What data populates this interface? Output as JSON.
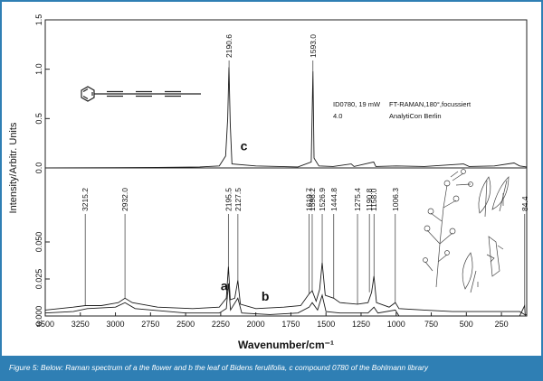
{
  "theme": {
    "frame_color": "#2f7fb4",
    "caption_bg": "#2f7fb4",
    "trace_color": "#1a1a1a",
    "caption_text_color": "#ffffff"
  },
  "chart_data": [
    {
      "type": "line",
      "panel": "top",
      "xlim": [
        3500,
        70
      ],
      "ylim": [
        0,
        1.5
      ],
      "yticks": [
        "0.0",
        "0.5",
        "1.0",
        "1.5"
      ],
      "ytick_values": [
        0,
        0.5,
        1.0,
        1.5
      ],
      "peak_labels": [
        {
          "x": 2190.6,
          "label": "2190.6"
        },
        {
          "x": 1593.0,
          "label": "1593.0"
        }
      ],
      "series": [
        {
          "name": "c",
          "label": "c",
          "label_x": 2110,
          "label_y": 0.18,
          "points": [
            [
              3500,
              0.0
            ],
            [
              2700,
              0.005
            ],
            [
              2400,
              0.01
            ],
            [
              2260,
              0.02
            ],
            [
              2215,
              0.12
            ],
            [
              2200,
              0.5
            ],
            [
              2191,
              1.02
            ],
            [
              2182,
              0.45
            ],
            [
              2170,
              0.04
            ],
            [
              2000,
              0.02
            ],
            [
              1700,
              0.01
            ],
            [
              1605,
              0.06
            ],
            [
              1593,
              0.98
            ],
            [
              1585,
              0.1
            ],
            [
              1550,
              0.02
            ],
            [
              1450,
              0.015
            ],
            [
              1320,
              0.04
            ],
            [
              1300,
              0.015
            ],
            [
              1160,
              0.06
            ],
            [
              1145,
              0.015
            ],
            [
              1000,
              0.02
            ],
            [
              800,
              0.015
            ],
            [
              520,
              0.04
            ],
            [
              480,
              0.015
            ],
            [
              300,
              0.02
            ],
            [
              160,
              0.05
            ],
            [
              120,
              0.02
            ],
            [
              70,
              0.01
            ]
          ]
        }
      ],
      "annotations": [
        {
          "text": "ID0780, 19 mW"
        },
        {
          "text": "FT-RAMAN,180°,focussiert"
        },
        {
          "text": "4.0"
        },
        {
          "text": "AnalytiCon Berlin"
        }
      ]
    },
    {
      "type": "line",
      "panel": "bottom",
      "xlim": [
        3500,
        70
      ],
      "ylim": [
        0,
        0.1
      ],
      "xlabel": "Wavenumber/cm⁻¹",
      "xticks": [
        3500,
        3250,
        3000,
        2750,
        2500,
        2250,
        2000,
        1750,
        1500,
        1250,
        1000,
        750,
        500,
        250
      ],
      "yticks": [
        "0.000",
        "0.025",
        "0.050"
      ],
      "ytick_values": [
        0,
        0.025,
        0.05
      ],
      "peak_labels": [
        {
          "x": 3215.2,
          "label": "3215.2"
        },
        {
          "x": 2932.0,
          "label": "2932.0"
        },
        {
          "x": 2195.5,
          "label": "2195.5"
        },
        {
          "x": 2127.5,
          "label": "2127.5"
        },
        {
          "x": 1619.7,
          "label": "1619.7"
        },
        {
          "x": 1598.2,
          "label": "1598.2"
        },
        {
          "x": 1526.9,
          "label": "1526.9"
        },
        {
          "x": 1444.8,
          "label": "1444.8"
        },
        {
          "x": 1275.4,
          "label": "1275.4"
        },
        {
          "x": 1190.8,
          "label": "1190.8"
        },
        {
          "x": 1158.0,
          "label": "1158.0"
        },
        {
          "x": 1006.3,
          "label": "1006.3"
        },
        {
          "x": 84.4,
          "label": "84.4"
        }
      ],
      "series": [
        {
          "name": "a",
          "label": "a",
          "label_x": 2250,
          "label_y": 0.0175,
          "points": [
            [
              3500,
              0.004
            ],
            [
              3300,
              0.006
            ],
            [
              3215,
              0.007
            ],
            [
              3100,
              0.007
            ],
            [
              2980,
              0.009
            ],
            [
              2932,
              0.012
            ],
            [
              2880,
              0.009
            ],
            [
              2700,
              0.006
            ],
            [
              2450,
              0.005
            ],
            [
              2260,
              0.006
            ],
            [
              2210,
              0.012
            ],
            [
              2195,
              0.0335
            ],
            [
              2182,
              0.011
            ],
            [
              2150,
              0.012
            ],
            [
              2128,
              0.024
            ],
            [
              2110,
              0.008
            ],
            [
              2000,
              0.005
            ],
            [
              1800,
              0.006
            ],
            [
              1680,
              0.007
            ],
            [
              1620,
              0.015
            ],
            [
              1598,
              0.017
            ],
            [
              1570,
              0.01
            ],
            [
              1545,
              0.018
            ],
            [
              1527,
              0.036
            ],
            [
              1505,
              0.014
            ],
            [
              1445,
              0.012
            ],
            [
              1400,
              0.009
            ],
            [
              1275,
              0.008
            ],
            [
              1200,
              0.009
            ],
            [
              1175,
              0.016
            ],
            [
              1158,
              0.027
            ],
            [
              1140,
              0.009
            ],
            [
              1050,
              0.006
            ],
            [
              1006,
              0.009
            ],
            [
              980,
              0.005
            ],
            [
              800,
              0.004
            ],
            [
              600,
              0.003
            ],
            [
              400,
              0.003
            ],
            [
              250,
              0.003
            ],
            [
              120,
              0.003
            ],
            [
              85,
              0.001
            ],
            [
              70,
              0.001
            ]
          ]
        },
        {
          "name": "b",
          "label": "b",
          "label_x": 1960,
          "label_y": 0.0105,
          "points": [
            [
              3500,
              0.002
            ],
            [
              3300,
              0.003
            ],
            [
              3200,
              0.005
            ],
            [
              3000,
              0.006
            ],
            [
              2932,
              0.009
            ],
            [
              2860,
              0.005
            ],
            [
              2500,
              0.002
            ],
            [
              2260,
              0.002
            ],
            [
              2210,
              0.005
            ],
            [
              2195,
              0.022
            ],
            [
              2180,
              0.004
            ],
            [
              2128,
              0.012
            ],
            [
              2100,
              0.002
            ],
            [
              1900,
              0.001
            ],
            [
              1700,
              0.002
            ],
            [
              1620,
              0.006
            ],
            [
              1598,
              0.009
            ],
            [
              1560,
              0.004
            ],
            [
              1527,
              0.014
            ],
            [
              1500,
              0.003
            ],
            [
              1400,
              0.002
            ],
            [
              1200,
              0.002
            ],
            [
              1158,
              0.006
            ],
            [
              1130,
              0.002
            ],
            [
              1006,
              0.004
            ],
            [
              980,
              0.0
            ],
            [
              900,
              0.0
            ],
            [
              600,
              0.0
            ],
            [
              300,
              0.0
            ],
            [
              120,
              0.0
            ],
            [
              85,
              0.007
            ],
            [
              80,
              0.0
            ],
            [
              70,
              0.0
            ]
          ]
        }
      ]
    }
  ],
  "shared_ylabel": "Intensity/Arbitr. Units",
  "structure": {
    "name": "phenyl-polyyne-structure-icon"
  },
  "illustration": {
    "name": "bidens-ferulifolia-plant-illustration"
  },
  "caption": "Figure 5: Below: Raman spectrum of a the flower and b the leaf of Bidens ferulifolia, c compound 0780 of the Bohlmann library"
}
